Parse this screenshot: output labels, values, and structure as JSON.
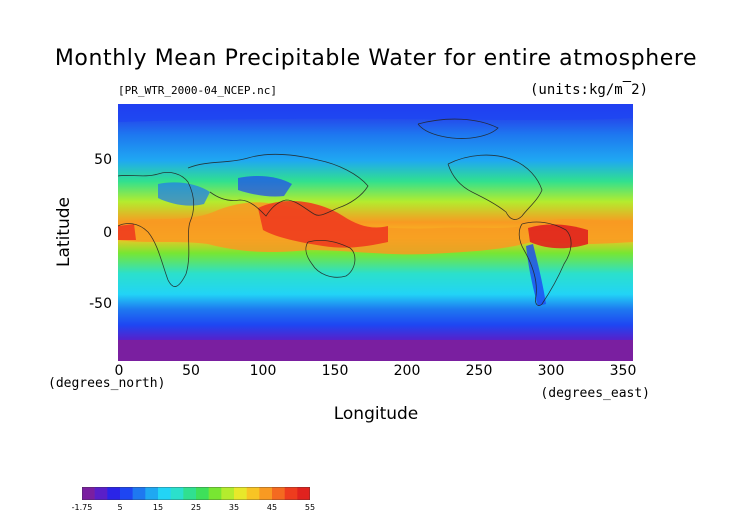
{
  "title": "Monthly Mean Precipitable Water for entire atmosphere",
  "file_label": "[PR_WTR_2000-04_NCEP.nc]",
  "units_label": "(units:kg/m^2)",
  "axes": {
    "x": {
      "label": "Longitude",
      "unit_label": "(degrees_east)",
      "range": [
        0,
        357.5
      ],
      "ticks": [
        "0",
        "50",
        "100",
        "150",
        "200",
        "250",
        "300",
        "350"
      ]
    },
    "y": {
      "label": "Latitude",
      "unit_label": "(degrees_north)",
      "range": [
        -90,
        90
      ],
      "ticks": [
        "50",
        "0",
        "-50"
      ]
    }
  },
  "colorbar": {
    "labels": [
      "-1.75",
      "5",
      "15",
      "25",
      "35",
      "45",
      "55"
    ],
    "colors": [
      "#7a1fa0",
      "#5a1fc8",
      "#2a24e8",
      "#1e46f2",
      "#1e78f0",
      "#1fa8f2",
      "#22d4f6",
      "#2be0cc",
      "#30e090",
      "#3ee05a",
      "#78e632",
      "#b4ec2e",
      "#e8e82a",
      "#f8c424",
      "#f89a22",
      "#f46a20",
      "#ee3c1e",
      "#e0221e"
    ]
  },
  "map": {
    "projection": "cylindrical",
    "coastlines": true
  }
}
